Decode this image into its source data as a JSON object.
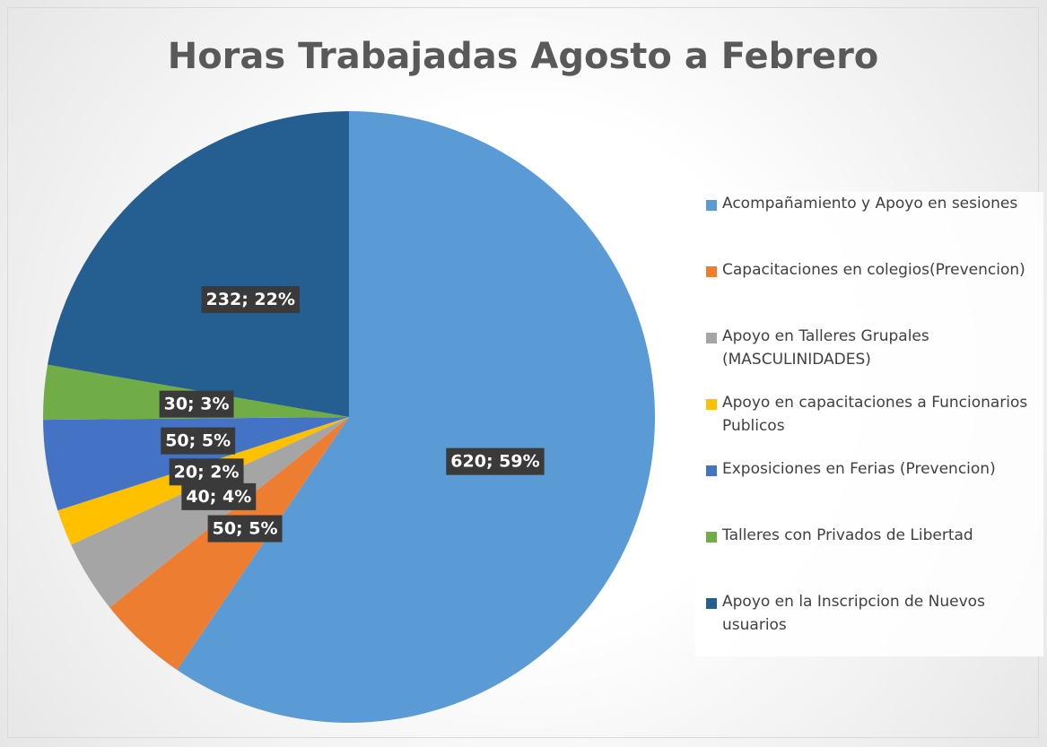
{
  "chart_data": {
    "type": "pie",
    "title": "Horas Trabajadas Agosto a Febrero",
    "categories": [
      "Acompañamiento y Apoyo en sesiones",
      "Capacitaciones en colegios(Prevencion)",
      "Apoyo en Talleres Grupales (MASCULINIDADES)",
      "Apoyo en capacitaciones a Funcionarios Publicos",
      "Exposiciones en Ferias (Prevencion)",
      "Talleres con Privados de Libertad",
      "Apoyo en la Inscripcion de Nuevos usuarios"
    ],
    "values": [
      620,
      50,
      40,
      20,
      50,
      30,
      232
    ],
    "value_labels": [
      "620; 59%",
      "50; 5%",
      "40; 4%",
      "20; 2%",
      "50; 5%",
      "30; 3%",
      "232; 22%"
    ],
    "colors": [
      "#5b9bd5",
      "#ed7d31",
      "#a5a5a5",
      "#ffc000",
      "#4472c4",
      "#70ad47",
      "#255e91"
    ],
    "legend": "right"
  }
}
